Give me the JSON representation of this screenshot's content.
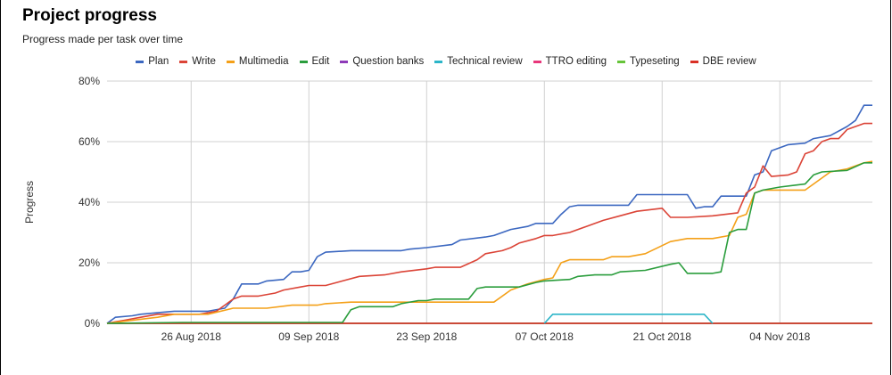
{
  "header": {
    "title": "Project progress",
    "subtitle": "Progress made per task over time"
  },
  "chart_data": {
    "type": "line",
    "title": "Project progress",
    "subtitle": "Progress made per task over time",
    "xlabel": "",
    "ylabel": "Progress",
    "ylim": [
      0,
      80
    ],
    "xlim": [
      "2018-08-16",
      "2018-11-15"
    ],
    "y_ticks": [
      "0%",
      "20%",
      "40%",
      "60%",
      "80%"
    ],
    "x_ticks": [
      "26 Aug 2018",
      "09 Sep 2018",
      "23 Sep 2018",
      "07 Oct 2018",
      "21 Oct 2018",
      "04 Nov 2018"
    ],
    "x_tick_dates": [
      "2018-08-26",
      "2018-09-09",
      "2018-09-23",
      "2018-10-07",
      "2018-10-21",
      "2018-11-04"
    ],
    "grid": true,
    "legend_position": "top",
    "series": [
      {
        "name": "Plan",
        "color": "#3b67c0",
        "points": [
          [
            "2018-08-16",
            0
          ],
          [
            "2018-08-17",
            2
          ],
          [
            "2018-08-19",
            2.5
          ],
          [
            "2018-08-20",
            3
          ],
          [
            "2018-08-22",
            3.5
          ],
          [
            "2018-08-24",
            4
          ],
          [
            "2018-08-28",
            4
          ],
          [
            "2018-08-30",
            5
          ],
          [
            "2018-08-31",
            8
          ],
          [
            "2018-09-01",
            13
          ],
          [
            "2018-09-03",
            13
          ],
          [
            "2018-09-04",
            14
          ],
          [
            "2018-09-06",
            14.5
          ],
          [
            "2018-09-07",
            17
          ],
          [
            "2018-09-08",
            17
          ],
          [
            "2018-09-09",
            17.5
          ],
          [
            "2018-09-10",
            22
          ],
          [
            "2018-09-11",
            23.5
          ],
          [
            "2018-09-14",
            24
          ],
          [
            "2018-09-20",
            24
          ],
          [
            "2018-09-21",
            24.5
          ],
          [
            "2018-09-23",
            25
          ],
          [
            "2018-09-26",
            26
          ],
          [
            "2018-09-27",
            27.5
          ],
          [
            "2018-09-30",
            28.5
          ],
          [
            "2018-10-01",
            29
          ],
          [
            "2018-10-03",
            31
          ],
          [
            "2018-10-05",
            32
          ],
          [
            "2018-10-06",
            33
          ],
          [
            "2018-10-08",
            33
          ],
          [
            "2018-10-09",
            36
          ],
          [
            "2018-10-10",
            38.5
          ],
          [
            "2018-10-11",
            39
          ],
          [
            "2018-10-17",
            39
          ],
          [
            "2018-10-18",
            42.5
          ],
          [
            "2018-10-24",
            42.5
          ],
          [
            "2018-10-25",
            38
          ],
          [
            "2018-10-26",
            38.5
          ],
          [
            "2018-10-27",
            38.5
          ],
          [
            "2018-10-28",
            42
          ],
          [
            "2018-10-31",
            42
          ],
          [
            "2018-11-01",
            49
          ],
          [
            "2018-11-02",
            50
          ],
          [
            "2018-11-03",
            57
          ],
          [
            "2018-11-05",
            59
          ],
          [
            "2018-11-07",
            59.5
          ],
          [
            "2018-11-08",
            61
          ],
          [
            "2018-11-10",
            62
          ],
          [
            "2018-11-12",
            65
          ],
          [
            "2018-11-13",
            67
          ],
          [
            "2018-11-14",
            72
          ],
          [
            "2018-11-15",
            72
          ]
        ]
      },
      {
        "name": "Write",
        "color": "#db4437",
        "points": [
          [
            "2018-08-16",
            0
          ],
          [
            "2018-08-18",
            1
          ],
          [
            "2018-08-20",
            2
          ],
          [
            "2018-08-22",
            3
          ],
          [
            "2018-08-24",
            3
          ],
          [
            "2018-08-27",
            3
          ],
          [
            "2018-08-29",
            4
          ],
          [
            "2018-08-31",
            8
          ],
          [
            "2018-09-01",
            9
          ],
          [
            "2018-09-03",
            9
          ],
          [
            "2018-09-05",
            10
          ],
          [
            "2018-09-06",
            11
          ],
          [
            "2018-09-08",
            12
          ],
          [
            "2018-09-09",
            12.5
          ],
          [
            "2018-09-11",
            12.5
          ],
          [
            "2018-09-13",
            14
          ],
          [
            "2018-09-15",
            15.5
          ],
          [
            "2018-09-18",
            16
          ],
          [
            "2018-09-20",
            17
          ],
          [
            "2018-09-23",
            18
          ],
          [
            "2018-09-24",
            18.5
          ],
          [
            "2018-09-27",
            18.5
          ],
          [
            "2018-09-29",
            21
          ],
          [
            "2018-09-30",
            23
          ],
          [
            "2018-10-02",
            24
          ],
          [
            "2018-10-03",
            25
          ],
          [
            "2018-10-04",
            26.5
          ],
          [
            "2018-10-06",
            28
          ],
          [
            "2018-10-07",
            29
          ],
          [
            "2018-10-08",
            29
          ],
          [
            "2018-10-10",
            30
          ],
          [
            "2018-10-12",
            32
          ],
          [
            "2018-10-14",
            34
          ],
          [
            "2018-10-16",
            35.5
          ],
          [
            "2018-10-18",
            37
          ],
          [
            "2018-10-21",
            38
          ],
          [
            "2018-10-22",
            35
          ],
          [
            "2018-10-24",
            35
          ],
          [
            "2018-10-27",
            35.5
          ],
          [
            "2018-10-30",
            36.5
          ],
          [
            "2018-10-31",
            43
          ],
          [
            "2018-11-01",
            45
          ],
          [
            "2018-11-02",
            52
          ],
          [
            "2018-11-03",
            48.5
          ],
          [
            "2018-11-05",
            49
          ],
          [
            "2018-11-06",
            50
          ],
          [
            "2018-11-07",
            56
          ],
          [
            "2018-11-08",
            57
          ],
          [
            "2018-11-09",
            60
          ],
          [
            "2018-11-10",
            61
          ],
          [
            "2018-11-11",
            61
          ],
          [
            "2018-11-12",
            64
          ],
          [
            "2018-11-14",
            66
          ],
          [
            "2018-11-15",
            66
          ]
        ]
      },
      {
        "name": "Multimedia",
        "color": "#f4a018",
        "points": [
          [
            "2018-08-16",
            0
          ],
          [
            "2018-08-19",
            1
          ],
          [
            "2018-08-22",
            2
          ],
          [
            "2018-08-24",
            3
          ],
          [
            "2018-08-28",
            3
          ],
          [
            "2018-08-31",
            5
          ],
          [
            "2018-09-04",
            5
          ],
          [
            "2018-09-07",
            6
          ],
          [
            "2018-09-08",
            6
          ],
          [
            "2018-09-10",
            6
          ],
          [
            "2018-09-11",
            6.5
          ],
          [
            "2018-09-14",
            7
          ],
          [
            "2018-09-20",
            7
          ],
          [
            "2018-10-01",
            7
          ],
          [
            "2018-10-03",
            11
          ],
          [
            "2018-10-05",
            13
          ],
          [
            "2018-10-07",
            14.5
          ],
          [
            "2018-10-08",
            15
          ],
          [
            "2018-10-09",
            20
          ],
          [
            "2018-10-10",
            21
          ],
          [
            "2018-10-14",
            21
          ],
          [
            "2018-10-15",
            22
          ],
          [
            "2018-10-17",
            22
          ],
          [
            "2018-10-19",
            23
          ],
          [
            "2018-10-22",
            27
          ],
          [
            "2018-10-24",
            28
          ],
          [
            "2018-10-27",
            28
          ],
          [
            "2018-10-29",
            29
          ],
          [
            "2018-10-30",
            35
          ],
          [
            "2018-10-31",
            36
          ],
          [
            "2018-11-01",
            43
          ],
          [
            "2018-11-02",
            44
          ],
          [
            "2018-11-07",
            44
          ],
          [
            "2018-11-08",
            46
          ],
          [
            "2018-11-10",
            50
          ],
          [
            "2018-11-12",
            51
          ],
          [
            "2018-11-14",
            53
          ],
          [
            "2018-11-15",
            53.5
          ]
        ]
      },
      {
        "name": "Edit",
        "color": "#2a9d3c",
        "points": [
          [
            "2018-08-16",
            0
          ],
          [
            "2018-08-25",
            0.3
          ],
          [
            "2018-09-09",
            0.3
          ],
          [
            "2018-09-13",
            0.3
          ],
          [
            "2018-09-14",
            4.5
          ],
          [
            "2018-09-15",
            5.5
          ],
          [
            "2018-09-19",
            5.5
          ],
          [
            "2018-09-20",
            6.5
          ],
          [
            "2018-09-22",
            7.5
          ],
          [
            "2018-09-23",
            7.5
          ],
          [
            "2018-09-24",
            8
          ],
          [
            "2018-09-28",
            8
          ],
          [
            "2018-09-29",
            11.5
          ],
          [
            "2018-09-30",
            12
          ],
          [
            "2018-10-04",
            12
          ],
          [
            "2018-10-06",
            13.5
          ],
          [
            "2018-10-07",
            14
          ],
          [
            "2018-10-10",
            14.5
          ],
          [
            "2018-10-11",
            15.5
          ],
          [
            "2018-10-13",
            16
          ],
          [
            "2018-10-15",
            16
          ],
          [
            "2018-10-16",
            17
          ],
          [
            "2018-10-19",
            17.5
          ],
          [
            "2018-10-22",
            19.5
          ],
          [
            "2018-10-23",
            20
          ],
          [
            "2018-10-24",
            16.5
          ],
          [
            "2018-10-27",
            16.5
          ],
          [
            "2018-10-28",
            17
          ],
          [
            "2018-10-29",
            30
          ],
          [
            "2018-10-30",
            31
          ],
          [
            "2018-10-31",
            31
          ],
          [
            "2018-11-01",
            43
          ],
          [
            "2018-11-02",
            44
          ],
          [
            "2018-11-04",
            45
          ],
          [
            "2018-11-07",
            46
          ],
          [
            "2018-11-08",
            49
          ],
          [
            "2018-11-09",
            50
          ],
          [
            "2018-11-12",
            50.5
          ],
          [
            "2018-11-14",
            53
          ],
          [
            "2018-11-15",
            53
          ]
        ]
      },
      {
        "name": "Question banks",
        "color": "#8e3ab8",
        "points": [
          [
            "2018-08-16",
            0
          ],
          [
            "2018-11-15",
            0
          ]
        ]
      },
      {
        "name": "Technical review",
        "color": "#2bb5c8",
        "points": [
          [
            "2018-10-07",
            0
          ],
          [
            "2018-10-08",
            3
          ],
          [
            "2018-10-26",
            3
          ],
          [
            "2018-10-27",
            0
          ]
        ]
      },
      {
        "name": "TTRO editing",
        "color": "#e8367a",
        "points": [
          [
            "2018-08-16",
            0
          ],
          [
            "2018-11-15",
            0
          ]
        ]
      },
      {
        "name": "Typeseting",
        "color": "#66c43a",
        "points": [
          [
            "2018-08-16",
            0
          ],
          [
            "2018-11-15",
            0
          ]
        ]
      },
      {
        "name": "DBE review",
        "color": "#d93025",
        "points": [
          [
            "2018-08-16",
            0
          ],
          [
            "2018-11-15",
            0
          ]
        ]
      }
    ]
  }
}
